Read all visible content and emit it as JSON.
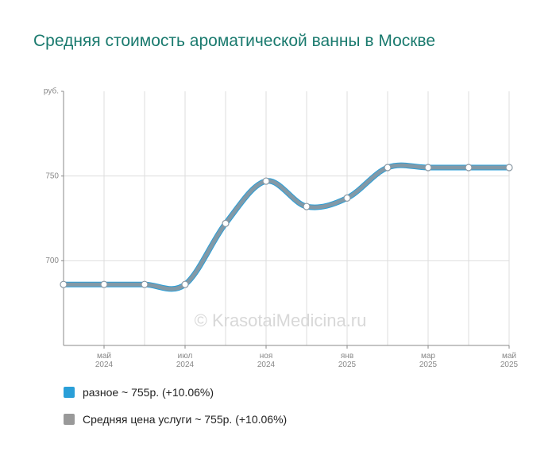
{
  "chart_data": {
    "type": "line",
    "title": "Средняя стоимость ароматической ванны в Москве",
    "watermark": "© KrasotaiMedicina.ru",
    "categories": [
      null,
      "май 2024",
      null,
      "июл 2024",
      null,
      "ноя 2024",
      null,
      "янв 2025",
      null,
      "мар 2025",
      null,
      "май 2025"
    ],
    "series": [
      {
        "name": "разное ~ 755р. (+10.06%)",
        "color": "#2a9fd8",
        "values": [
          686,
          686,
          686,
          686,
          722,
          747,
          732,
          737,
          755,
          755,
          755,
          755
        ]
      },
      {
        "name": "Средняя цена услуги ~ 755р. (+10.06%)",
        "color": "#999999",
        "values": [
          686,
          686,
          686,
          686,
          722,
          747,
          732,
          737,
          755,
          755,
          755,
          755
        ]
      }
    ],
    "ylim": [
      650,
      800
    ],
    "yticks": [
      700,
      750,
      {
        "value": 800,
        "label": "руб."
      }
    ],
    "grid": true
  }
}
